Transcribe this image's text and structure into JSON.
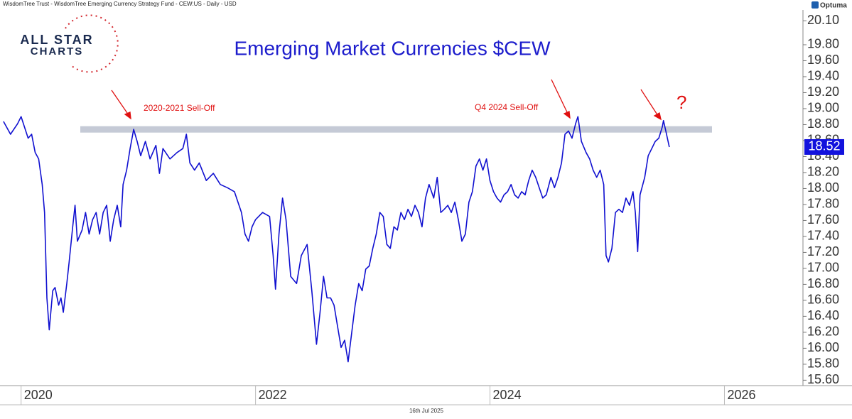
{
  "header": "WisdomTree Trust - WisdomTree Emerging Currency Strategy Fund - CEW:US - Daily - USD",
  "brand": "Optuma",
  "logo": {
    "line1": "ALL STAR",
    "line2": "CHARTS"
  },
  "footer_date": "16th Jul 2025",
  "chart_data": {
    "type": "line",
    "title": "Emerging Market Currencies $CEW",
    "annotations": [
      "2020-2021 Sell-Off",
      "Q4 2024 Sell-Off",
      "?"
    ],
    "color": "#1010d0",
    "last_price": 18.52,
    "resistance_band": [
      18.7,
      18.78
    ],
    "xlim": [
      2019.82,
      2026.67
    ],
    "xticks": [
      2020,
      2022,
      2024,
      2026
    ],
    "ylim": [
      15.55,
      20.2
    ],
    "yticks": [
      {
        "value": 15.6,
        "label": "15.60"
      },
      {
        "value": 15.8,
        "label": "15.80"
      },
      {
        "value": 16.0,
        "label": "16.00"
      },
      {
        "value": 16.2,
        "label": "16.20"
      },
      {
        "value": 16.4,
        "label": "16.40"
      },
      {
        "value": 16.6,
        "label": "16.60"
      },
      {
        "value": 16.8,
        "label": "16.80"
      },
      {
        "value": 17.0,
        "label": "17.00"
      },
      {
        "value": 17.2,
        "label": "17.20"
      },
      {
        "value": 17.4,
        "label": "17.40"
      },
      {
        "value": 17.6,
        "label": "17.60"
      },
      {
        "value": 17.8,
        "label": "17.80"
      },
      {
        "value": 18.0,
        "label": "18.00"
      },
      {
        "value": 18.2,
        "label": "18.20"
      },
      {
        "value": 18.4,
        "label": "18.40"
      },
      {
        "value": 18.6,
        "label": "18.60"
      },
      {
        "value": 18.8,
        "label": "18.80"
      },
      {
        "value": 19.0,
        "label": "19.00"
      },
      {
        "value": 19.2,
        "label": "19.20"
      },
      {
        "value": 19.4,
        "label": "19.40"
      },
      {
        "value": 19.6,
        "label": "19.60"
      },
      {
        "value": 19.8,
        "label": "19.80"
      },
      {
        "value": 20.1,
        "label": "20.10"
      }
    ],
    "x": [
      2019.85,
      2019.91,
      2019.97,
      2020.0,
      2020.06,
      2020.09,
      2020.12,
      2020.15,
      2020.18,
      2020.2,
      2020.22,
      2020.24,
      2020.27,
      2020.29,
      2020.32,
      2020.34,
      2020.36,
      2020.39,
      2020.41,
      2020.44,
      2020.46,
      2020.48,
      2020.52,
      2020.55,
      2020.58,
      2020.61,
      2020.64,
      2020.67,
      2020.7,
      2020.73,
      2020.76,
      2020.79,
      2020.82,
      2020.85,
      2020.87,
      2020.9,
      2020.93,
      2020.96,
      2020.99,
      2021.02,
      2021.06,
      2021.1,
      2021.15,
      2021.18,
      2021.21,
      2021.27,
      2021.33,
      2021.38,
      2021.41,
      2021.44,
      2021.48,
      2021.52,
      2021.58,
      2021.64,
      2021.7,
      2021.76,
      2021.82,
      2021.88,
      2021.91,
      2021.94,
      2021.97,
      2022.0,
      2022.06,
      2022.12,
      2022.15,
      2022.17,
      2022.2,
      2022.23,
      2022.26,
      2022.3,
      2022.35,
      2022.39,
      2022.44,
      2022.48,
      2022.52,
      2022.55,
      2022.58,
      2022.61,
      2022.64,
      2022.67,
      2022.7,
      2022.73,
      2022.76,
      2022.79,
      2022.82,
      2022.85,
      2022.88,
      2022.91,
      2022.94,
      2022.97,
      2023.0,
      2023.03,
      2023.06,
      2023.09,
      2023.12,
      2023.15,
      2023.18,
      2023.21,
      2023.24,
      2023.27,
      2023.3,
      2023.33,
      2023.36,
      2023.39,
      2023.42,
      2023.45,
      2023.48,
      2023.52,
      2023.55,
      2023.58,
      2023.61,
      2023.64,
      2023.67,
      2023.7,
      2023.73,
      2023.76,
      2023.79,
      2023.82,
      2023.85,
      2023.88,
      2023.91,
      2023.94,
      2023.97,
      2024.0,
      2024.03,
      2024.06,
      2024.09,
      2024.12,
      2024.15,
      2024.18,
      2024.21,
      2024.24,
      2024.27,
      2024.3,
      2024.33,
      2024.36,
      2024.39,
      2024.42,
      2024.45,
      2024.48,
      2024.52,
      2024.55,
      2024.58,
      2024.61,
      2024.64,
      2024.67,
      2024.7,
      2024.73,
      2024.75,
      2024.78,
      2024.82,
      2024.85,
      2024.88,
      2024.91,
      2024.94,
      2024.97,
      2024.99,
      2025.01,
      2025.04,
      2025.07,
      2025.1,
      2025.13,
      2025.16,
      2025.19,
      2025.22,
      2025.24,
      2025.26,
      2025.28,
      2025.32,
      2025.35,
      2025.38,
      2025.41,
      2025.44,
      2025.47,
      2025.48,
      2025.5,
      2025.53
    ],
    "values": [
      18.84,
      18.68,
      18.81,
      18.9,
      18.63,
      18.68,
      18.45,
      18.37,
      18.05,
      17.7,
      16.63,
      16.23,
      16.72,
      16.76,
      16.54,
      16.63,
      16.45,
      16.81,
      17.08,
      17.52,
      17.79,
      17.34,
      17.48,
      17.7,
      17.43,
      17.61,
      17.7,
      17.43,
      17.7,
      17.79,
      17.34,
      17.61,
      17.79,
      17.52,
      18.05,
      18.23,
      18.5,
      18.74,
      18.59,
      18.41,
      18.59,
      18.37,
      18.54,
      18.19,
      18.5,
      18.37,
      18.45,
      18.5,
      18.68,
      18.32,
      18.23,
      18.32,
      18.1,
      18.19,
      18.05,
      18.01,
      17.96,
      17.7,
      17.43,
      17.34,
      17.52,
      17.61,
      17.7,
      17.65,
      17.16,
      16.74,
      17.43,
      17.88,
      17.61,
      16.9,
      16.81,
      17.16,
      17.3,
      16.72,
      16.05,
      16.45,
      16.9,
      16.63,
      16.63,
      16.54,
      16.27,
      16.01,
      16.1,
      15.83,
      16.19,
      16.54,
      16.81,
      16.72,
      16.99,
      17.03,
      17.25,
      17.43,
      17.7,
      17.65,
      17.3,
      17.25,
      17.52,
      17.48,
      17.7,
      17.61,
      17.74,
      17.65,
      17.79,
      17.7,
      17.52,
      17.88,
      18.05,
      17.88,
      18.14,
      17.7,
      17.74,
      17.79,
      17.7,
      17.83,
      17.61,
      17.34,
      17.43,
      17.83,
      17.96,
      18.28,
      18.37,
      18.23,
      18.37,
      18.1,
      17.96,
      17.88,
      17.83,
      17.92,
      17.96,
      18.05,
      17.92,
      17.88,
      17.96,
      17.92,
      18.1,
      18.23,
      18.14,
      18.01,
      17.88,
      17.92,
      18.14,
      18.01,
      18.14,
      18.32,
      18.68,
      18.72,
      18.63,
      18.81,
      18.9,
      18.59,
      18.45,
      18.37,
      18.23,
      18.14,
      18.23,
      18.05,
      17.16,
      17.08,
      17.25,
      17.7,
      17.74,
      17.7,
      17.88,
      17.79,
      17.96,
      17.7,
      17.21,
      17.92,
      18.14,
      18.41,
      18.5,
      18.59,
      18.63,
      18.77,
      18.85,
      18.72,
      18.52
    ]
  }
}
